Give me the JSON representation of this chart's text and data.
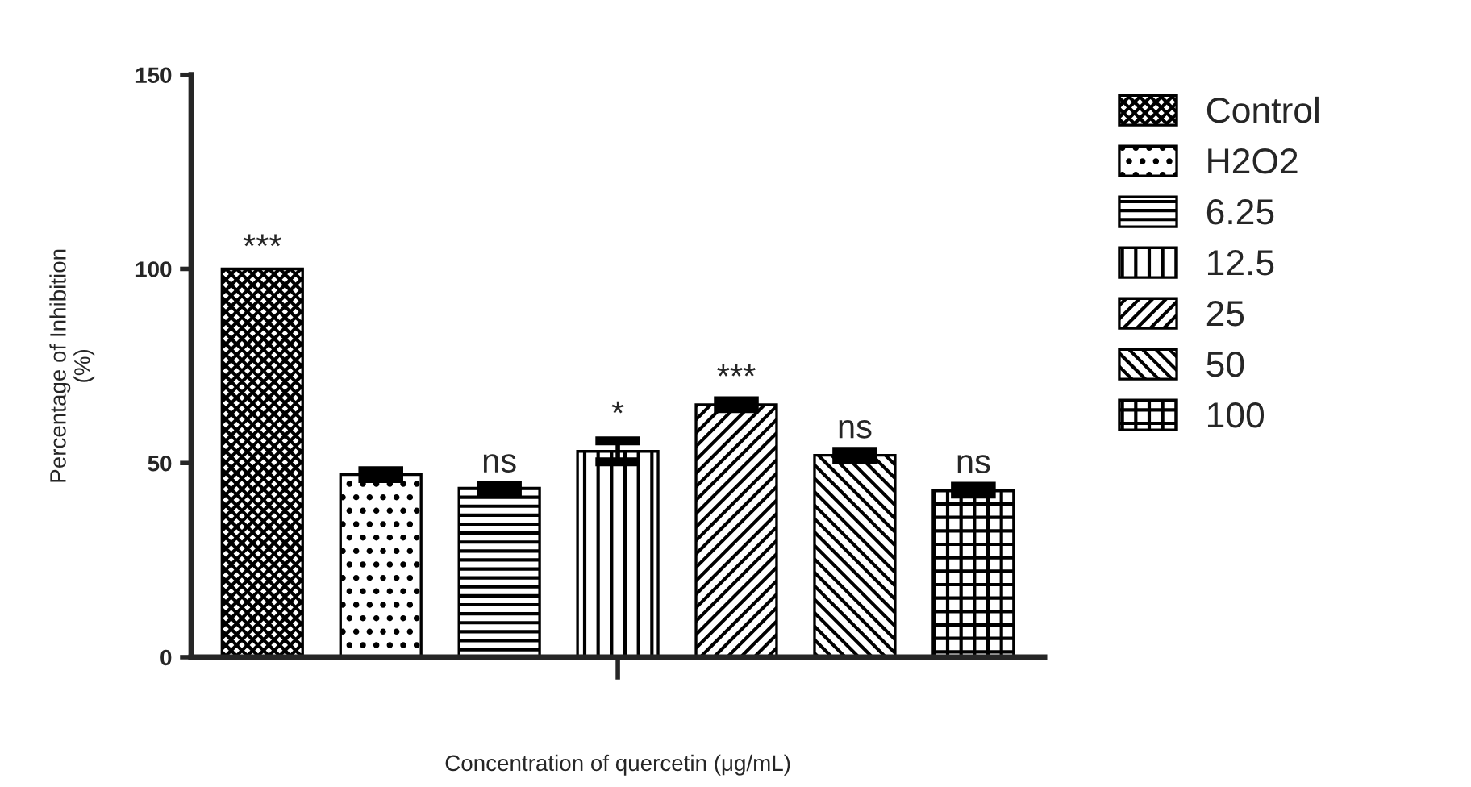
{
  "chart_data": {
    "type": "bar",
    "xlabel": "Concentration of quercetin (μg/mL)",
    "ylabel": "Percentage of Inhibition\n(%)",
    "categories": [
      null,
      null,
      null,
      null,
      null,
      null,
      null
    ],
    "series": [
      {
        "name": "Control",
        "color": "#000000",
        "values": [
          100,
          null,
          null,
          null,
          null,
          null,
          null
        ],
        "value_labels": [
          "***",
          null,
          null,
          null,
          null,
          null,
          null
        ]
      },
      {
        "name": "H2O2",
        "color": "#000000",
        "values": [
          null,
          47,
          null,
          null,
          null,
          null,
          null
        ],
        "errors": [
          null,
          1,
          null,
          null,
          null,
          null,
          null
        ]
      },
      {
        "name": "6.25",
        "color": "#000000",
        "values": [
          null,
          null,
          43.5,
          null,
          null,
          null,
          null
        ],
        "errors": [
          null,
          null,
          0.8,
          null,
          null,
          null,
          null
        ],
        "value_labels": [
          null,
          null,
          "ns",
          null,
          null,
          null,
          null
        ]
      },
      {
        "name": "12.5",
        "color": "#000000",
        "values": [
          null,
          null,
          null,
          53,
          null,
          null,
          null
        ],
        "errors": [
          null,
          null,
          null,
          2.7,
          null,
          null,
          null
        ],
        "value_labels": [
          null,
          null,
          null,
          "*",
          null,
          null,
          null
        ]
      },
      {
        "name": "25",
        "color": "#000000",
        "values": [
          null,
          null,
          null,
          null,
          65,
          null,
          null
        ],
        "errors": [
          null,
          null,
          null,
          null,
          1,
          null,
          null
        ],
        "value_labels": [
          null,
          null,
          null,
          null,
          "***",
          null,
          null
        ]
      },
      {
        "name": "50",
        "color": "#000000",
        "values": [
          null,
          null,
          null,
          null,
          null,
          52,
          null
        ],
        "errors": [
          null,
          null,
          null,
          null,
          null,
          1,
          null
        ],
        "value_labels": [
          null,
          null,
          null,
          null,
          null,
          "ns",
          null
        ]
      },
      {
        "name": "100",
        "color": "#000000",
        "values": [
          null,
          null,
          null,
          null,
          null,
          null,
          43
        ],
        "errors": [
          null,
          null,
          null,
          null,
          null,
          null,
          1
        ],
        "value_labels": [
          null,
          null,
          null,
          null,
          null,
          null,
          "ns"
        ]
      }
    ],
    "ylim": [
      0,
      150
    ],
    "yticks": [
      0,
      50,
      100,
      150
    ],
    "grid": false,
    "legend": "right"
  }
}
